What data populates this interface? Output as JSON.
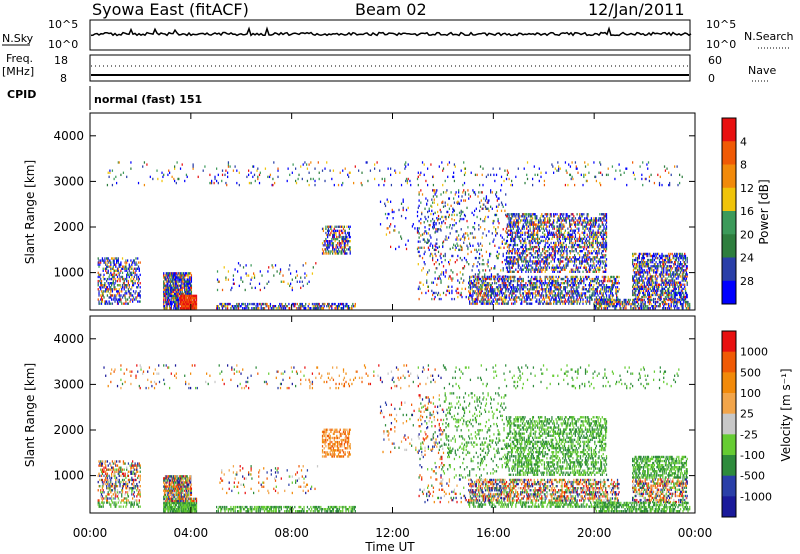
{
  "header": {
    "station": "Syowa East (fitACF)",
    "beam": "Beam 02",
    "date": "12/Jan/2011"
  },
  "aux_panels": {
    "nsky_label": "N.Sky",
    "nsky_top": "10^5",
    "nsky_bottom": "10^0",
    "nsearch_label": "N.Search",
    "nsearch_top": "10^5",
    "nsearch_bottom": "10^0",
    "freq_label": "Freq.",
    "freq_unit": "[MHz]",
    "freq_top": "18",
    "freq_bottom": "8",
    "nave_label": "Nave",
    "nave_top": "60",
    "nave_bottom": "0",
    "cpid_label": "CPID",
    "cpid_text": "normal (fast) 151"
  },
  "colors": {
    "power": [
      "#0000ff",
      "#2a3fa8",
      "#2e7e3e",
      "#3c9a5a",
      "#f0c40a",
      "#f28a0a",
      "#f05a05",
      "#e81010"
    ],
    "velocity": [
      "#e81010",
      "#f05a05",
      "#f28a0a",
      "#f2a54a",
      "#c8c8c8",
      "#66cc33",
      "#2e8b3c",
      "#2a3fa8",
      "#1a1a9a"
    ]
  },
  "chart_data": [
    {
      "type": "heatmap",
      "name": "power",
      "ylabel": "Slant Range [km]",
      "xlabel": "Time UT",
      "ylim": [
        180,
        4500
      ],
      "xlim": [
        0,
        24
      ],
      "yticks": [
        "1000",
        "2000",
        "3000",
        "4000"
      ],
      "xticks": [
        "00:00",
        "04:00",
        "08:00",
        "12:00",
        "16:00",
        "20:00",
        "00:00"
      ],
      "colorbar_label": "Power [dB]",
      "colorbar_ticks": [
        "4",
        "8",
        "12",
        "16",
        "20",
        "24",
        "28"
      ]
    },
    {
      "type": "heatmap",
      "name": "velocity",
      "ylabel": "Slant Range [km]",
      "xlabel": "Time UT",
      "ylim": [
        180,
        4500
      ],
      "xlim": [
        0,
        24
      ],
      "yticks": [
        "1000",
        "2000",
        "3000",
        "4000"
      ],
      "xticks": [
        "00:00",
        "04:00",
        "08:00",
        "12:00",
        "16:00",
        "20:00",
        "00:00"
      ],
      "colorbar_label": "Velocity [m s⁻¹]",
      "colorbar_ticks": [
        "1000",
        "500",
        "100",
        "25",
        "-25",
        "-100",
        "-500",
        "-1000"
      ]
    }
  ]
}
